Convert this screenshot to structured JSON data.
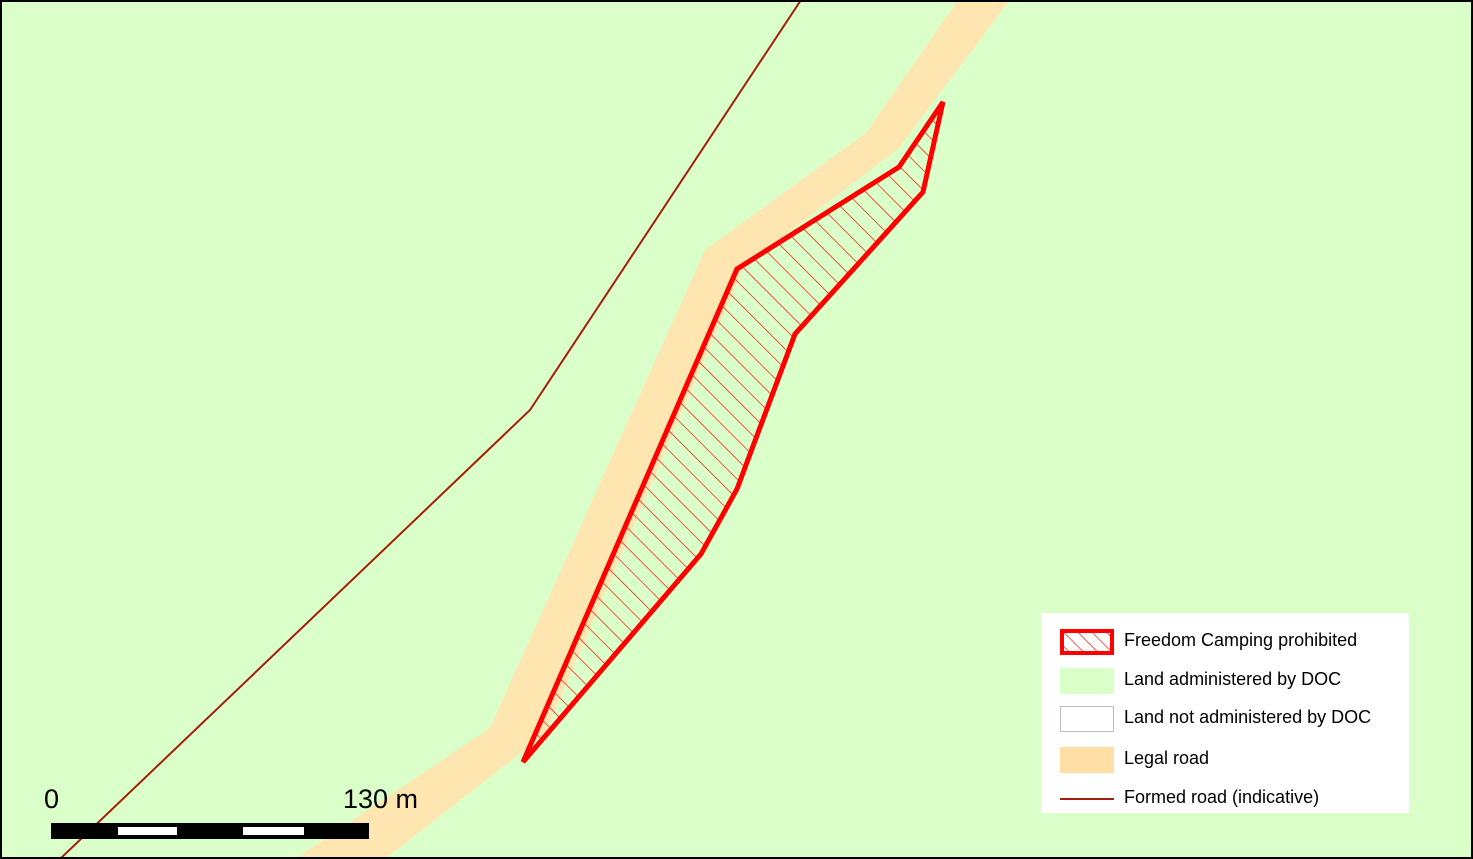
{
  "legend": {
    "items": [
      {
        "label": "Freedom Camping prohibited",
        "kind": "hatched-polygon",
        "color": "#ff0000"
      },
      {
        "label": "Land administered by DOC",
        "kind": "fill",
        "color": "#dbffc8"
      },
      {
        "label": "Land not administered by DOC",
        "kind": "fill",
        "color": "#ffffff"
      },
      {
        "label": "Legal road",
        "kind": "fill",
        "color": "#ffdfa5"
      },
      {
        "label": "Formed road (indicative)",
        "kind": "line",
        "color": "#a31f0c"
      }
    ]
  },
  "scale_bar": {
    "start_label": "0",
    "end_label": "130 m"
  },
  "colors": {
    "doc_land": "#dbffc8",
    "legal_road": "#ffe6b0",
    "formed_road": "#a31f0c",
    "prohibited_outline": "#ff0000",
    "frame": "#000000"
  }
}
